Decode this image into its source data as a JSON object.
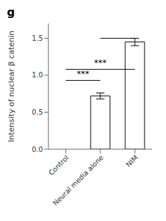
{
  "chart_data": {
    "type": "bar",
    "title": "g",
    "ylabel": "Intensity of nuclear β catenin",
    "categories": [
      "Control",
      "Neural media alone",
      "NIM"
    ],
    "values": [
      0.0,
      0.72,
      1.45
    ],
    "errors": [
      0.0,
      0.04,
      0.05
    ],
    "color": "#ffffff",
    "ylim": [
      0.0,
      1.7
    ],
    "yticks": [
      {
        "value": 0.0,
        "label": "0.0"
      },
      0.5,
      {
        "value": 1.0,
        "label": "1.0"
      },
      1.5
    ],
    "annotations": [
      {
        "from": "Control",
        "to": "Neural media alone",
        "y": 0.93,
        "label": "***"
      },
      {
        "from": "Control",
        "to": "NIM",
        "y": 1.08,
        "label": "***"
      },
      {
        "from": "Neural media alone",
        "to": "NIM",
        "y": 1.5
      }
    ]
  }
}
